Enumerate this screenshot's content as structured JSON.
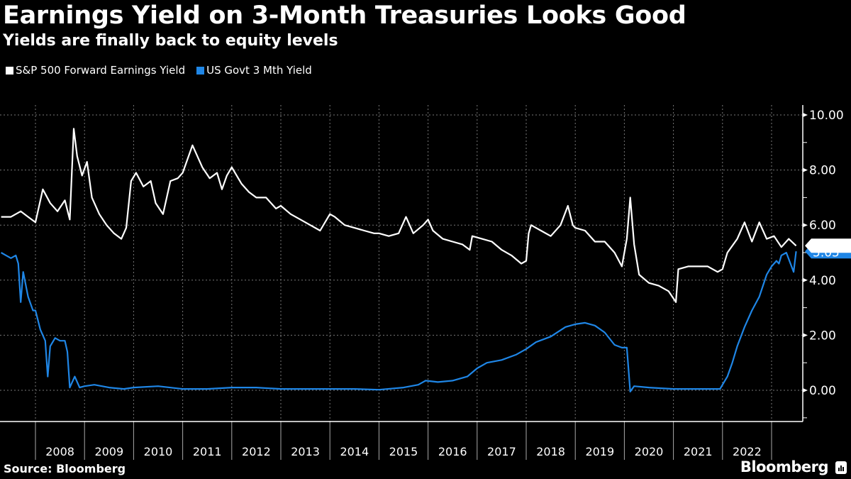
{
  "header": {
    "title": "Earnings Yield on 3-Month Treasuries Looks Good",
    "subtitle": "Yields are finally back to equity levels"
  },
  "footer": {
    "source": "Source: Bloomberg",
    "brand": "Bloomberg"
  },
  "chart_data": {
    "type": "line",
    "title": "Earnings Yield on 3-Month Treasuries Looks Good",
    "subtitle": "Yields are finally back to equity levels",
    "xlabel": "",
    "ylabel": "",
    "ylim": [
      -1.2,
      11
    ],
    "y_ticks": [
      "0.00",
      "2.00",
      "4.00",
      "6.00",
      "8.00",
      "10.00"
    ],
    "y_tick_values": [
      0,
      2,
      4,
      6,
      8,
      10
    ],
    "x_ticks": [
      "2008",
      "2009",
      "2010",
      "2011",
      "2012",
      "2013",
      "2014",
      "2015",
      "2016",
      "2017",
      "2018",
      "2019",
      "2020",
      "2021",
      "2022"
    ],
    "xlim": [
      2007.3,
      2023.6
    ],
    "grid": true,
    "legend_position": "top-left",
    "last_value_labels": [
      {
        "series": "S&P 500 Forward Earnings Yield",
        "value": "5.25"
      },
      {
        "series": "US Govt 3 Mth Yield",
        "value": "5.05"
      }
    ],
    "series": [
      {
        "name": "S&P 500 Forward Earnings Yield",
        "color": "#ffffff",
        "x": [
          2007.3,
          2007.5,
          2007.7,
          2007.85,
          2008.0,
          2008.15,
          2008.3,
          2008.45,
          2008.6,
          2008.7,
          2008.78,
          2008.85,
          2008.95,
          2009.05,
          2009.15,
          2009.3,
          2009.45,
          2009.6,
          2009.75,
          2009.85,
          2009.95,
          2010.05,
          2010.2,
          2010.35,
          2010.45,
          2010.6,
          2010.75,
          2010.9,
          2011.0,
          2011.2,
          2011.4,
          2011.55,
          2011.7,
          2011.8,
          2011.9,
          2012.0,
          2012.2,
          2012.35,
          2012.5,
          2012.7,
          2012.9,
          2013.0,
          2013.2,
          2013.4,
          2013.6,
          2013.8,
          2014.0,
          2014.1,
          2014.3,
          2014.5,
          2014.7,
          2014.9,
          2015.0,
          2015.2,
          2015.4,
          2015.55,
          2015.7,
          2015.9,
          2016.0,
          2016.1,
          2016.3,
          2016.5,
          2016.7,
          2016.85,
          2016.9,
          2017.1,
          2017.3,
          2017.5,
          2017.7,
          2017.9,
          2018.0,
          2018.05,
          2018.1,
          2018.3,
          2018.5,
          2018.7,
          2018.85,
          2018.95,
          2019.0,
          2019.2,
          2019.4,
          2019.6,
          2019.8,
          2019.95,
          2020.05,
          2020.12,
          2020.2,
          2020.3,
          2020.5,
          2020.7,
          2020.9,
          2021.05,
          2021.1,
          2021.3,
          2021.5,
          2021.7,
          2021.9,
          2022.0,
          2022.1,
          2022.3,
          2022.45,
          2022.6,
          2022.75,
          2022.9,
          2023.05,
          2023.2,
          2023.35,
          2023.5
        ],
        "values": [
          6.3,
          6.3,
          6.5,
          6.3,
          6.1,
          7.3,
          6.8,
          6.5,
          6.9,
          6.2,
          9.5,
          8.5,
          7.8,
          8.3,
          7.0,
          6.4,
          6.0,
          5.7,
          5.5,
          5.9,
          7.6,
          7.9,
          7.4,
          7.6,
          6.8,
          6.4,
          7.6,
          7.7,
          7.9,
          8.9,
          8.1,
          7.7,
          7.9,
          7.3,
          7.8,
          8.1,
          7.5,
          7.2,
          7.0,
          7.0,
          6.6,
          6.7,
          6.4,
          6.2,
          6.0,
          5.8,
          6.4,
          6.3,
          6.0,
          5.9,
          5.8,
          5.7,
          5.7,
          5.6,
          5.7,
          6.3,
          5.7,
          6.0,
          6.2,
          5.8,
          5.5,
          5.4,
          5.3,
          5.1,
          5.6,
          5.5,
          5.4,
          5.1,
          4.9,
          4.6,
          4.7,
          5.7,
          6.0,
          5.8,
          5.6,
          6.0,
          6.7,
          6.0,
          5.9,
          5.8,
          5.4,
          5.4,
          5.0,
          4.5,
          5.5,
          7.0,
          5.3,
          4.2,
          3.9,
          3.8,
          3.6,
          3.2,
          4.4,
          4.5,
          4.5,
          4.5,
          4.3,
          4.4,
          5.0,
          5.5,
          6.1,
          5.4,
          6.1,
          5.5,
          5.6,
          5.2,
          5.5,
          5.25
        ]
      },
      {
        "name": "US Govt 3 Mth Yield",
        "color": "#1f86e6",
        "x": [
          2007.3,
          2007.4,
          2007.5,
          2007.6,
          2007.65,
          2007.7,
          2007.75,
          2007.85,
          2007.95,
          2008.0,
          2008.1,
          2008.2,
          2008.25,
          2008.3,
          2008.4,
          2008.5,
          2008.6,
          2008.65,
          2008.7,
          2008.8,
          2008.9,
          2009.0,
          2009.2,
          2009.5,
          2009.8,
          2010.0,
          2010.5,
          2011.0,
          2011.5,
          2012.0,
          2012.5,
          2013.0,
          2013.5,
          2014.0,
          2014.5,
          2015.0,
          2015.5,
          2015.8,
          2015.95,
          2016.2,
          2016.5,
          2016.8,
          2017.0,
          2017.2,
          2017.5,
          2017.8,
          2018.0,
          2018.2,
          2018.5,
          2018.8,
          2019.0,
          2019.2,
          2019.4,
          2019.6,
          2019.8,
          2019.95,
          2020.05,
          2020.12,
          2020.2,
          2020.5,
          2021.0,
          2021.5,
          2021.95,
          2022.1,
          2022.2,
          2022.3,
          2022.45,
          2022.6,
          2022.75,
          2022.9,
          2023.0,
          2023.1,
          2023.15,
          2023.2,
          2023.3,
          2023.45,
          2023.5
        ],
        "values": [
          5.0,
          4.9,
          4.8,
          4.9,
          4.6,
          3.2,
          4.3,
          3.4,
          2.9,
          2.9,
          2.2,
          1.8,
          0.5,
          1.6,
          1.9,
          1.8,
          1.8,
          1.4,
          0.1,
          0.5,
          0.1,
          0.15,
          0.2,
          0.1,
          0.05,
          0.1,
          0.15,
          0.05,
          0.05,
          0.1,
          0.1,
          0.05,
          0.05,
          0.05,
          0.05,
          0.02,
          0.1,
          0.2,
          0.35,
          0.3,
          0.35,
          0.5,
          0.8,
          1.0,
          1.1,
          1.3,
          1.5,
          1.75,
          1.95,
          2.3,
          2.4,
          2.45,
          2.35,
          2.1,
          1.65,
          1.55,
          1.55,
          -0.05,
          0.15,
          0.1,
          0.05,
          0.05,
          0.05,
          0.5,
          1.0,
          1.6,
          2.3,
          2.9,
          3.4,
          4.2,
          4.5,
          4.7,
          4.6,
          4.9,
          5.0,
          4.3,
          5.05
        ]
      }
    ]
  }
}
